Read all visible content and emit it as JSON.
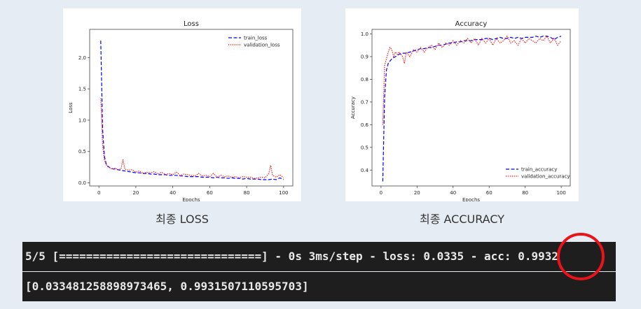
{
  "chart_data": [
    {
      "type": "line",
      "title": "Loss",
      "xlabel": "Epochs",
      "ylabel": "Loss",
      "xlim": [
        -5,
        105
      ],
      "ylim": [
        -0.05,
        2.45
      ],
      "xticks": [
        0,
        20,
        40,
        60,
        80,
        100
      ],
      "yticks": [
        0.0,
        0.5,
        1.0,
        1.5,
        2.0
      ],
      "xtick_labels": [
        "0",
        "20",
        "40",
        "60",
        "80",
        "100"
      ],
      "ytick_labels": [
        "0.0",
        "0.5",
        "1.0",
        "1.5",
        "2.0"
      ],
      "legend": "top-right",
      "grid": false,
      "series": [
        {
          "name": "train_loss",
          "color": "#0000ff",
          "style": "dashed",
          "x": [
            1,
            2,
            3,
            4,
            5,
            6,
            7,
            8,
            9,
            10,
            12,
            14,
            16,
            18,
            20,
            22,
            24,
            26,
            28,
            30,
            32,
            34,
            36,
            38,
            40,
            42,
            44,
            46,
            48,
            50,
            52,
            54,
            56,
            58,
            60,
            62,
            64,
            66,
            68,
            70,
            72,
            74,
            76,
            78,
            80,
            82,
            84,
            86,
            88,
            90,
            92,
            94,
            96,
            98,
            100
          ],
          "y": [
            2.27,
            0.85,
            0.42,
            0.3,
            0.26,
            0.24,
            0.23,
            0.22,
            0.22,
            0.21,
            0.2,
            0.19,
            0.18,
            0.17,
            0.16,
            0.16,
            0.15,
            0.15,
            0.14,
            0.14,
            0.13,
            0.13,
            0.13,
            0.12,
            0.12,
            0.12,
            0.11,
            0.11,
            0.1,
            0.1,
            0.1,
            0.1,
            0.09,
            0.09,
            0.09,
            0.08,
            0.09,
            0.08,
            0.08,
            0.07,
            0.08,
            0.07,
            0.07,
            0.06,
            0.07,
            0.06,
            0.06,
            0.06,
            0.05,
            0.05,
            0.05,
            0.06,
            0.05,
            0.08,
            0.05
          ]
        },
        {
          "name": "validation_loss",
          "color": "#ff0000",
          "style": "dotted",
          "x": [
            1,
            2,
            3,
            4,
            5,
            6,
            7,
            8,
            9,
            10,
            12,
            13,
            14,
            16,
            18,
            20,
            22,
            24,
            26,
            28,
            30,
            32,
            34,
            36,
            38,
            40,
            42,
            44,
            46,
            48,
            50,
            52,
            54,
            56,
            58,
            60,
            62,
            64,
            66,
            68,
            70,
            72,
            74,
            76,
            78,
            80,
            82,
            84,
            86,
            88,
            90,
            92,
            93,
            94,
            96,
            98,
            100
          ],
          "y": [
            1.35,
            0.6,
            0.36,
            0.29,
            0.25,
            0.24,
            0.22,
            0.22,
            0.24,
            0.21,
            0.22,
            0.38,
            0.22,
            0.2,
            0.21,
            0.17,
            0.19,
            0.15,
            0.17,
            0.16,
            0.18,
            0.14,
            0.17,
            0.13,
            0.15,
            0.13,
            0.17,
            0.12,
            0.14,
            0.13,
            0.12,
            0.11,
            0.15,
            0.11,
            0.12,
            0.1,
            0.15,
            0.09,
            0.12,
            0.1,
            0.11,
            0.09,
            0.1,
            0.08,
            0.1,
            0.09,
            0.09,
            0.07,
            0.08,
            0.09,
            0.08,
            0.15,
            0.28,
            0.12,
            0.09,
            0.13,
            0.08
          ]
        }
      ]
    },
    {
      "type": "line",
      "title": "Accuracy",
      "xlabel": "Epochs",
      "ylabel": "Accuracy",
      "xlim": [
        -5,
        105
      ],
      "ylim": [
        0.33,
        1.02
      ],
      "xticks": [
        0,
        20,
        40,
        60,
        80,
        100
      ],
      "yticks": [
        0.4,
        0.5,
        0.6,
        0.7,
        0.8,
        0.9,
        1.0
      ],
      "xtick_labels": [
        "0",
        "20",
        "40",
        "60",
        "80",
        "100"
      ],
      "ytick_labels": [
        "0.4",
        "0.5",
        "0.6",
        "0.7",
        "0.8",
        "0.9",
        "1.0"
      ],
      "legend": "bottom-right",
      "grid": false,
      "series": [
        {
          "name": "train_accuracy",
          "color": "#0000ff",
          "style": "dashed",
          "x": [
            1,
            2,
            3,
            4,
            5,
            6,
            7,
            8,
            9,
            10,
            12,
            14,
            16,
            18,
            20,
            22,
            24,
            26,
            28,
            30,
            32,
            34,
            36,
            38,
            40,
            42,
            44,
            46,
            48,
            50,
            52,
            54,
            56,
            58,
            60,
            62,
            64,
            66,
            68,
            70,
            72,
            74,
            76,
            78,
            80,
            82,
            84,
            86,
            88,
            90,
            92,
            94,
            96,
            98,
            100
          ],
          "y": [
            0.35,
            0.72,
            0.84,
            0.87,
            0.88,
            0.89,
            0.895,
            0.9,
            0.905,
            0.91,
            0.915,
            0.915,
            0.92,
            0.925,
            0.93,
            0.935,
            0.935,
            0.94,
            0.94,
            0.945,
            0.95,
            0.95,
            0.955,
            0.96,
            0.96,
            0.965,
            0.965,
            0.97,
            0.97,
            0.97,
            0.975,
            0.975,
            0.975,
            0.98,
            0.98,
            0.975,
            0.98,
            0.985,
            0.98,
            0.98,
            0.985,
            0.98,
            0.985,
            0.98,
            0.985,
            0.985,
            0.985,
            0.99,
            0.985,
            0.99,
            0.99,
            0.985,
            0.975,
            0.985,
            0.99
          ]
        },
        {
          "name": "validation_accuracy",
          "color": "#ff0000",
          "style": "dotted",
          "x": [
            1,
            2,
            3,
            4,
            5,
            6,
            7,
            8,
            9,
            10,
            12,
            13,
            14,
            16,
            18,
            20,
            22,
            24,
            26,
            28,
            30,
            32,
            34,
            36,
            38,
            40,
            42,
            44,
            46,
            48,
            50,
            52,
            54,
            56,
            58,
            60,
            62,
            64,
            66,
            68,
            70,
            72,
            74,
            76,
            78,
            80,
            82,
            84,
            86,
            88,
            90,
            92,
            94,
            96,
            98,
            100
          ],
          "y": [
            0.6,
            0.86,
            0.89,
            0.92,
            0.94,
            0.93,
            0.9,
            0.92,
            0.91,
            0.92,
            0.9,
            0.87,
            0.92,
            0.9,
            0.93,
            0.92,
            0.94,
            0.92,
            0.94,
            0.95,
            0.93,
            0.96,
            0.94,
            0.96,
            0.95,
            0.97,
            0.95,
            0.97,
            0.96,
            0.98,
            0.96,
            0.98,
            0.95,
            0.98,
            0.96,
            0.98,
            0.95,
            0.98,
            0.96,
            0.97,
            0.99,
            0.96,
            0.97,
            0.95,
            0.98,
            0.96,
            0.98,
            0.97,
            0.96,
            0.98,
            0.97,
            0.99,
            0.96,
            0.98,
            0.95,
            0.97
          ]
        }
      ]
    }
  ],
  "captions": {
    "loss": "최종 LOSS",
    "accuracy": "최종 ACCURACY"
  },
  "terminal": {
    "line1": "5/5 [==============================] - 0s 3ms/step - loss: 0.0335 - acc: 0.9932",
    "line2": "[0.033481258898973465, 0.9931507110595703]"
  },
  "colors": {
    "background": "#e6ecf3",
    "terminal_bg": "#1e1e1e",
    "highlight": "#e8131b"
  }
}
